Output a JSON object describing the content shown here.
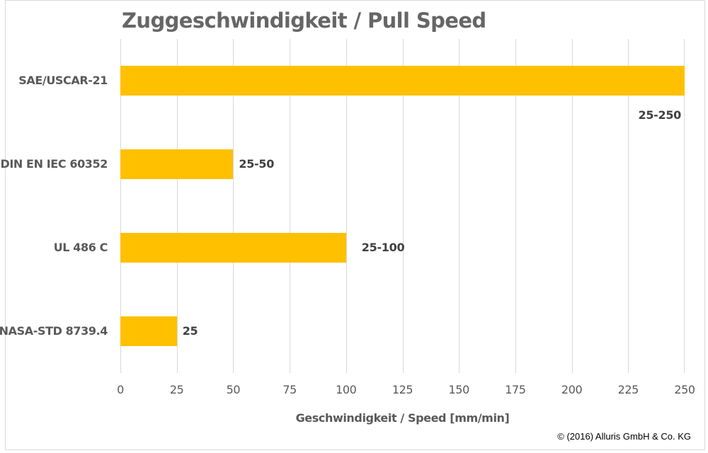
{
  "chart_data": {
    "type": "bar",
    "orientation": "horizontal",
    "title": "Zuggeschwindigkeit / Pull Speed",
    "xlabel": "Geschwindigkeit / Speed [mm/min]",
    "ylabel": "",
    "categories": [
      "SAE/USCAR-21",
      "DIN EN IEC 60352",
      "UL 486 C",
      "NASA-STD 8739.4"
    ],
    "values": [
      250,
      50,
      100,
      25
    ],
    "data_labels": [
      "25-250",
      "25-50",
      "25-100",
      "25"
    ],
    "xlim": [
      0,
      250
    ],
    "x_ticks": [
      0,
      25,
      50,
      75,
      100,
      125,
      150,
      175,
      200,
      225,
      250
    ],
    "grid": "vertical",
    "legend": "none",
    "bar_color": "#FFC000"
  },
  "title": "Zuggeschwindigkeit / Pull Speed",
  "xaxis": {
    "label": "Geschwindigkeit / Speed [mm/min]",
    "ticks": [
      "0",
      "25",
      "50",
      "75",
      "100",
      "125",
      "150",
      "175",
      "200",
      "225",
      "250"
    ]
  },
  "bars": [
    {
      "category": "SAE/USCAR-21",
      "value": 250,
      "label": "25-250"
    },
    {
      "category": "DIN EN IEC 60352",
      "value": 50,
      "label": "25-50"
    },
    {
      "category": "UL 486 C",
      "value": 100,
      "label": "25-100"
    },
    {
      "category": "NASA-STD 8739.4",
      "value": 25,
      "label": "25"
    }
  ],
  "colors": {
    "bar": "#FFC000",
    "grid": "#d9d9d9",
    "text": "#595959"
  },
  "copyright": "© (2016) Alluris GmbH & Co. KG"
}
